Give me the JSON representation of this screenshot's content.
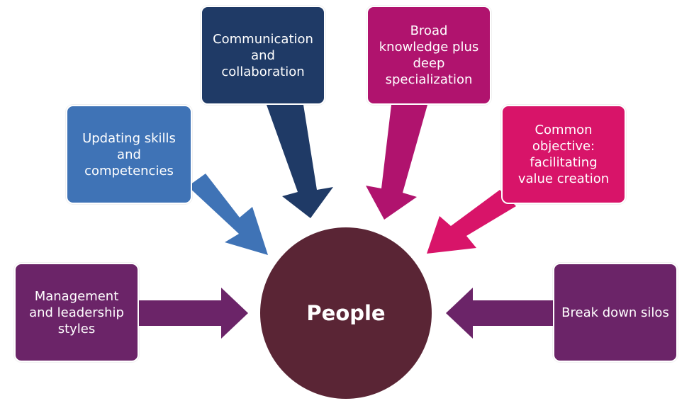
{
  "diagram": {
    "center": {
      "label": "People",
      "color": "#5a2535"
    },
    "nodes": [
      {
        "id": "management",
        "lines": [
          "Management",
          "and leadership",
          "styles"
        ],
        "color": "#6b2468"
      },
      {
        "id": "updating",
        "lines": [
          "Updating skills",
          "and",
          "competencies"
        ],
        "color": "#3f73b6"
      },
      {
        "id": "communication",
        "lines": [
          "Communication",
          "and",
          "collaboration"
        ],
        "color": "#1f3a66"
      },
      {
        "id": "broad",
        "lines": [
          "Broad",
          "knowledge plus",
          "deep",
          "specialization"
        ],
        "color": "#b0136e"
      },
      {
        "id": "common",
        "lines": [
          "Common",
          "objective:",
          "facilitating",
          "value creation"
        ],
        "color": "#d81469"
      },
      {
        "id": "silos",
        "lines": [
          "Break down silos"
        ],
        "color": "#6b2468"
      }
    ]
  }
}
